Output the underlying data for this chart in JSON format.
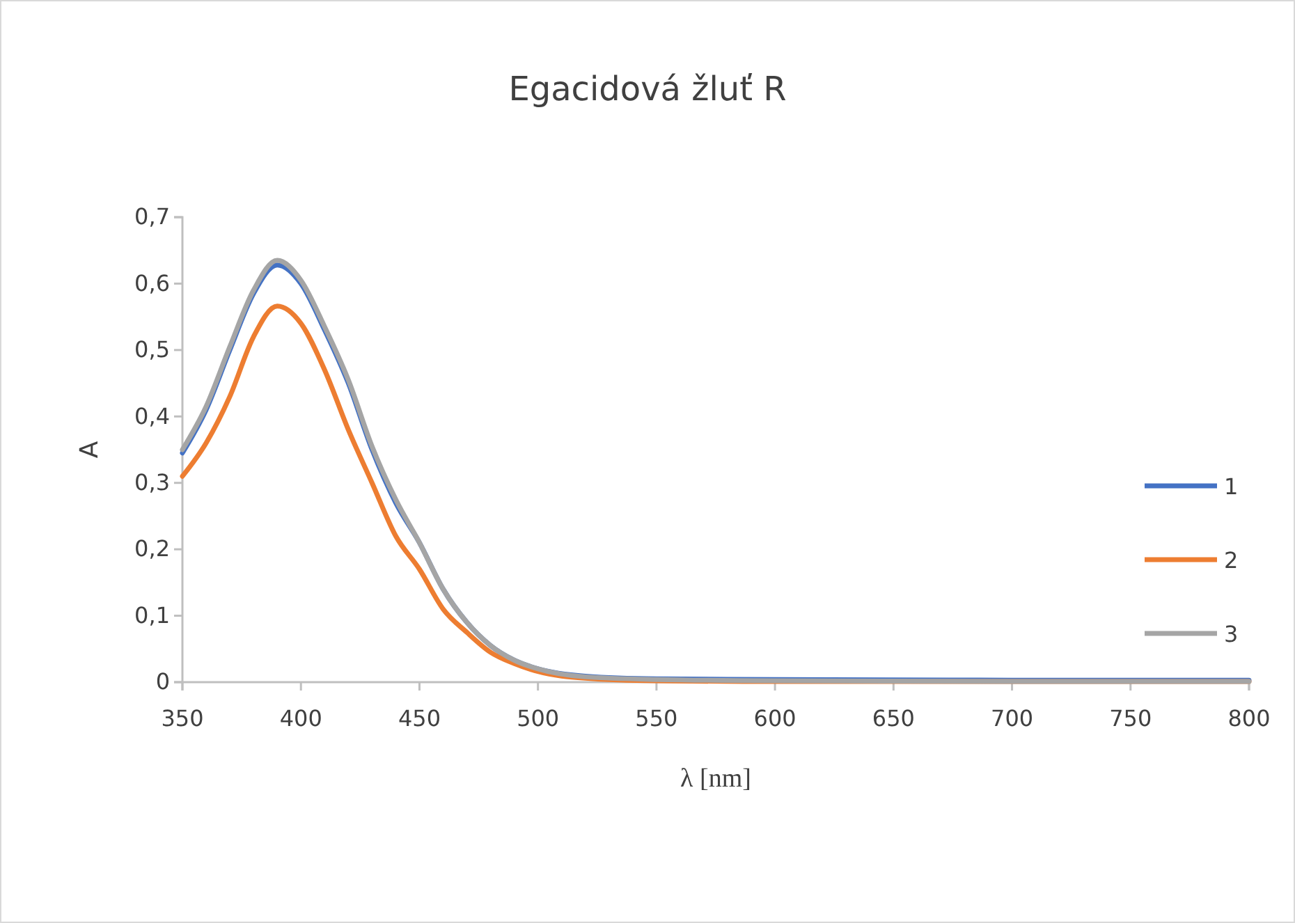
{
  "chart_data": {
    "type": "line",
    "title": "Egacidová žluť R",
    "xlabel": "λ [nm]",
    "ylabel": "A",
    "xlim": [
      350,
      800
    ],
    "xticks": [
      350,
      400,
      450,
      500,
      550,
      600,
      650,
      700,
      750,
      800
    ],
    "ylim": [
      0,
      0.7
    ],
    "yticks": [
      0,
      {
        "value": 0.1,
        "label": "0,1"
      },
      {
        "value": 0.2,
        "label": "0,2"
      },
      {
        "value": 0.3,
        "label": "0,3"
      },
      {
        "value": 0.4,
        "label": "0,4"
      },
      {
        "value": 0.5,
        "label": "0,5"
      },
      {
        "value": 0.6,
        "label": "0,6"
      },
      {
        "value": 0.7,
        "label": "0,7"
      }
    ],
    "x": [
      350,
      360,
      370,
      380,
      390,
      400,
      410,
      420,
      430,
      440,
      450,
      460,
      470,
      480,
      490,
      500,
      520,
      550,
      600,
      700,
      800
    ],
    "series": [
      {
        "name": "1",
        "color": "#4472c4",
        "values": [
          0.345,
          0.41,
          0.5,
          0.585,
          0.628,
          0.6,
          0.53,
          0.45,
          0.35,
          0.27,
          0.21,
          0.14,
          0.09,
          0.055,
          0.033,
          0.02,
          0.009,
          0.005,
          0.004,
          0.003,
          0.003
        ]
      },
      {
        "name": "2",
        "color": "#ed7d31",
        "values": [
          0.31,
          0.36,
          0.43,
          0.52,
          0.566,
          0.54,
          0.47,
          0.38,
          0.3,
          0.22,
          0.17,
          0.11,
          0.075,
          0.045,
          0.028,
          0.016,
          0.006,
          0.002,
          0.001,
          0.001,
          0.001
        ]
      },
      {
        "name": "3",
        "color": "#a5a5a5",
        "values": [
          0.35,
          0.415,
          0.505,
          0.59,
          0.635,
          0.605,
          0.535,
          0.455,
          0.355,
          0.275,
          0.21,
          0.14,
          0.09,
          0.055,
          0.033,
          0.02,
          0.008,
          0.004,
          0.002,
          0.001,
          0.001
        ]
      }
    ],
    "legend": "right",
    "marker": "none",
    "line_style": "solid"
  }
}
